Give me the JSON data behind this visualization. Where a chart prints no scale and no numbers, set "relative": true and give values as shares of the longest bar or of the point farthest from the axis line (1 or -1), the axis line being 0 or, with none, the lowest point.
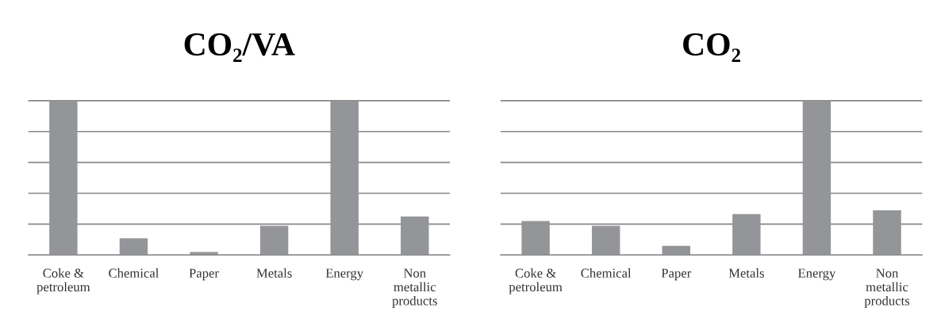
{
  "chart_data": [
    {
      "type": "bar",
      "title": "CO₂/VA",
      "relative": true,
      "grid": "y",
      "color": "#939598",
      "categories": [
        "Coke & petroleum",
        "Chemical",
        "Paper",
        "Metals",
        "Energy",
        "Non metallic products"
      ],
      "values": [
        1,
        0.108,
        0.02,
        0.19,
        1,
        0.25
      ]
    },
    {
      "type": "bar",
      "title": "CO₂",
      "relative": true,
      "grid": "y",
      "color": "#939598",
      "categories": [
        "Coke & petroleum",
        "Chemical",
        "Paper",
        "Metals",
        "Energy",
        "Non metallic products"
      ],
      "values": [
        0.22,
        0.19,
        0.06,
        0.265,
        1,
        0.29
      ]
    }
  ]
}
